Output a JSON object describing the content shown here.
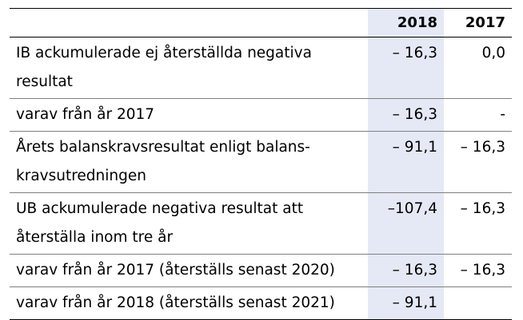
{
  "table": {
    "headers": {
      "label": "",
      "year_2018": "2018",
      "year_2017": "2017"
    },
    "highlight_color": "#e4e9f5",
    "rows": [
      {
        "label": "IB ackumulerade ej återställda negativa resultat",
        "v2018": "– 16,3",
        "v2017": "0,0"
      },
      {
        "label": "varav från år 2017",
        "v2018": "– 16,3",
        "v2017": "-"
      },
      {
        "label": "Årets balanskravsresultat enligt balans-kravsutredningen",
        "v2018": "– 91,1",
        "v2017": "– 16,3"
      },
      {
        "label": "UB ackumulerade negativa resultat att återställa inom tre år",
        "v2018": "–107,4",
        "v2017": "– 16,3"
      },
      {
        "label": "varav från år 2017 (återställs senast 2020)",
        "v2018": "– 16,3",
        "v2017": "– 16,3"
      },
      {
        "label": "varav från år 2018 (återställs senast 2021)",
        "v2018": "– 91,1",
        "v2017": ""
      }
    ]
  }
}
